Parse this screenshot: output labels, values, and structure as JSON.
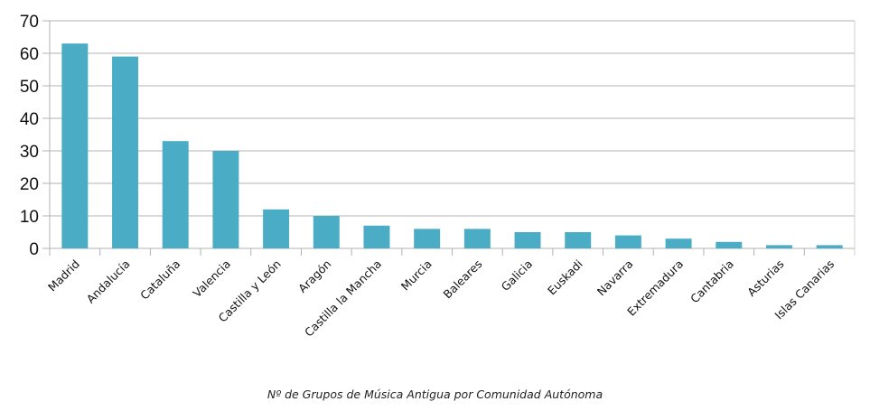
{
  "chart_data": {
    "type": "bar",
    "title": "",
    "caption": "Nº de Grupos de Música Antigua por Comunidad Autónoma",
    "xlabel": "",
    "ylabel": "",
    "ylim": [
      0,
      70
    ],
    "yticks": [
      0,
      10,
      20,
      30,
      40,
      50,
      60,
      70
    ],
    "grid": true,
    "legend": "none",
    "bar_color": "#4bacc6",
    "categories": [
      "Madrid",
      "Andalucía",
      "Cataluña",
      "Valencia",
      "Castilla y León",
      "Aragón",
      "Castilla la Mancha",
      "Murcia",
      "Baleares",
      "Galicia",
      "Euskadi",
      "Navarra",
      "Extremadura",
      "Cantabria",
      "Asturias",
      "Islas Canarias"
    ],
    "values": [
      63,
      59,
      33,
      30,
      12,
      10,
      7,
      6,
      6,
      5,
      5,
      4,
      3,
      2,
      1,
      1
    ]
  }
}
